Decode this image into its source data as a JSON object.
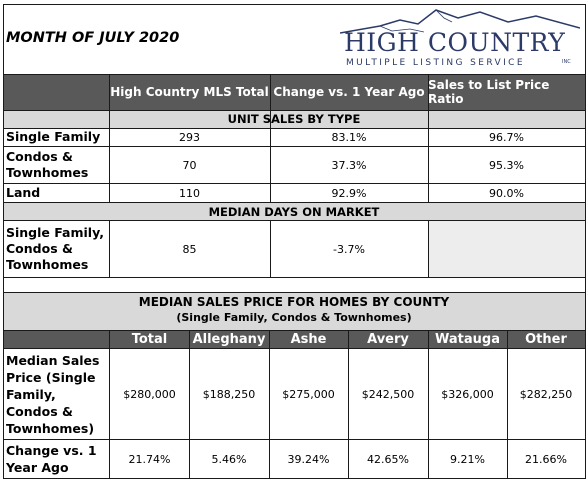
{
  "header": {
    "month_title": "MONTH OF JULY 2020",
    "logo_main": "HIGH COUNTRY",
    "logo_sub": "MULTIPLE LISTING SERVICE",
    "logo_mark": "INC"
  },
  "table1": {
    "columns": [
      "High Country MLS Total",
      "Change vs. 1 Year Ago",
      "Sales to List Price Ratio"
    ],
    "unit_sales_heading": "UNIT SALES BY TYPE",
    "rows": [
      {
        "label": "Single Family",
        "total": "293",
        "change": "83.1%",
        "ratio": "96.7%"
      },
      {
        "label": "Condos & Townhomes",
        "total": "70",
        "change": "37.3%",
        "ratio": "95.3%"
      },
      {
        "label": "Land",
        "total": "110",
        "change": "92.9%",
        "ratio": "90.0%"
      }
    ],
    "median_days_heading": "MEDIAN DAYS ON MARKET",
    "median_days_row": {
      "label": "Single Family, Condos & Townhomes",
      "total": "85",
      "change": "-3.7%"
    }
  },
  "table2": {
    "heading_line1": "MEDIAN SALES PRICE FOR HOMES BY COUNTY",
    "heading_line2": "(Single Family, Condos & Townhomes)",
    "columns": [
      "Total",
      "Alleghany",
      "Ashe",
      "Avery",
      "Watauga",
      "Other"
    ],
    "price_row": {
      "label": "Median Sales Price (Single Family, Condos & Townhomes)",
      "values": [
        "$280,000",
        "$188,250",
        "$275,000",
        "$242,500",
        "$326,000",
        "$282,250"
      ]
    },
    "change_row": {
      "label": "Change vs. 1 Year Ago",
      "values": [
        "21.74%",
        "5.46%",
        "39.24%",
        "42.65%",
        "9.21%",
        "21.66%"
      ]
    }
  },
  "colors": {
    "header_fill": "#595959",
    "subheader_fill": "#d9d9d9",
    "empty_cell": "#ededed",
    "logo": "#2b3a67"
  }
}
